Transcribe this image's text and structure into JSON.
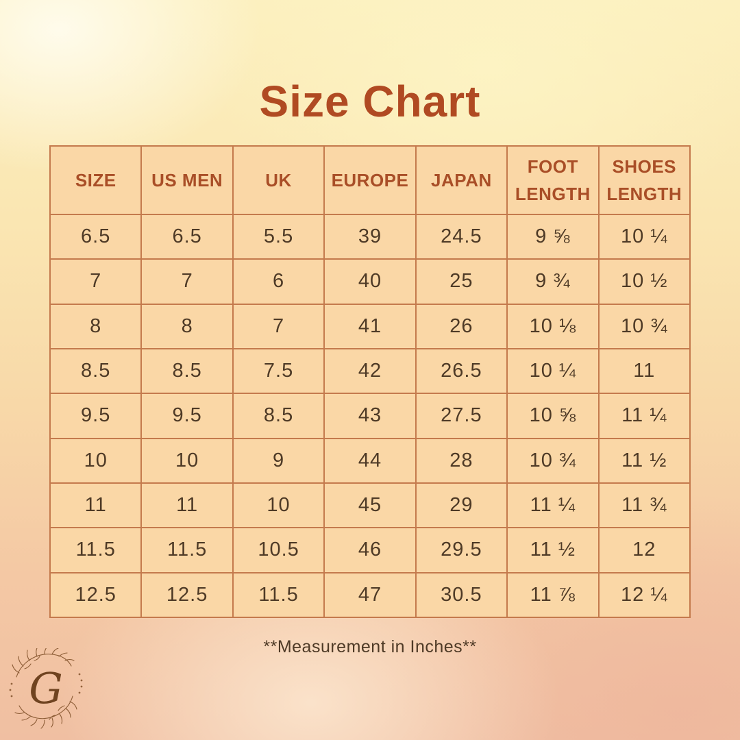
{
  "title": "Size Chart",
  "footnote": "**Measurement in Inches**",
  "logo": {
    "letter": "G"
  },
  "chart_data": {
    "type": "table",
    "title": "Size Chart",
    "columns": [
      "SIZE",
      "US MEN",
      "UK",
      "EUROPE",
      "JAPAN",
      "FOOT LENGTH",
      "SHOES LENGTH"
    ],
    "rows": [
      [
        "6.5",
        "6.5",
        "5.5",
        "39",
        "24.5",
        "9 ⅝",
        "10 ¼"
      ],
      [
        "7",
        "7",
        "6",
        "40",
        "25",
        "9 ¾",
        "10 ½"
      ],
      [
        "8",
        "8",
        "7",
        "41",
        "26",
        "10 ⅛",
        "10 ¾"
      ],
      [
        "8.5",
        "8.5",
        "7.5",
        "42",
        "26.5",
        "10 ¼",
        "11"
      ],
      [
        "9.5",
        "9.5",
        "8.5",
        "43",
        "27.5",
        "10 ⅝",
        "11 ¼"
      ],
      [
        "10",
        "10",
        "9",
        "44",
        "28",
        "10 ¾",
        "11 ½"
      ],
      [
        "11",
        "11",
        "10",
        "45",
        "29",
        "11 ¼",
        "11 ¾"
      ],
      [
        "11.5",
        "11.5",
        "10.5",
        "46",
        "29.5",
        "11 ½",
        "12"
      ],
      [
        "12.5",
        "12.5",
        "11.5",
        "47",
        "30.5",
        "11 ⅞",
        "12 ¼"
      ]
    ],
    "units_note": "Measurement in Inches"
  },
  "colors": {
    "title_text": "#b04a22",
    "header_text": "#a94e27",
    "cell_text": "#4e3a26",
    "cell_bg": "#fad7a6",
    "border": "#c47a4d",
    "footnote_text": "#4e3a26",
    "logo_brown": "#6f4320"
  }
}
